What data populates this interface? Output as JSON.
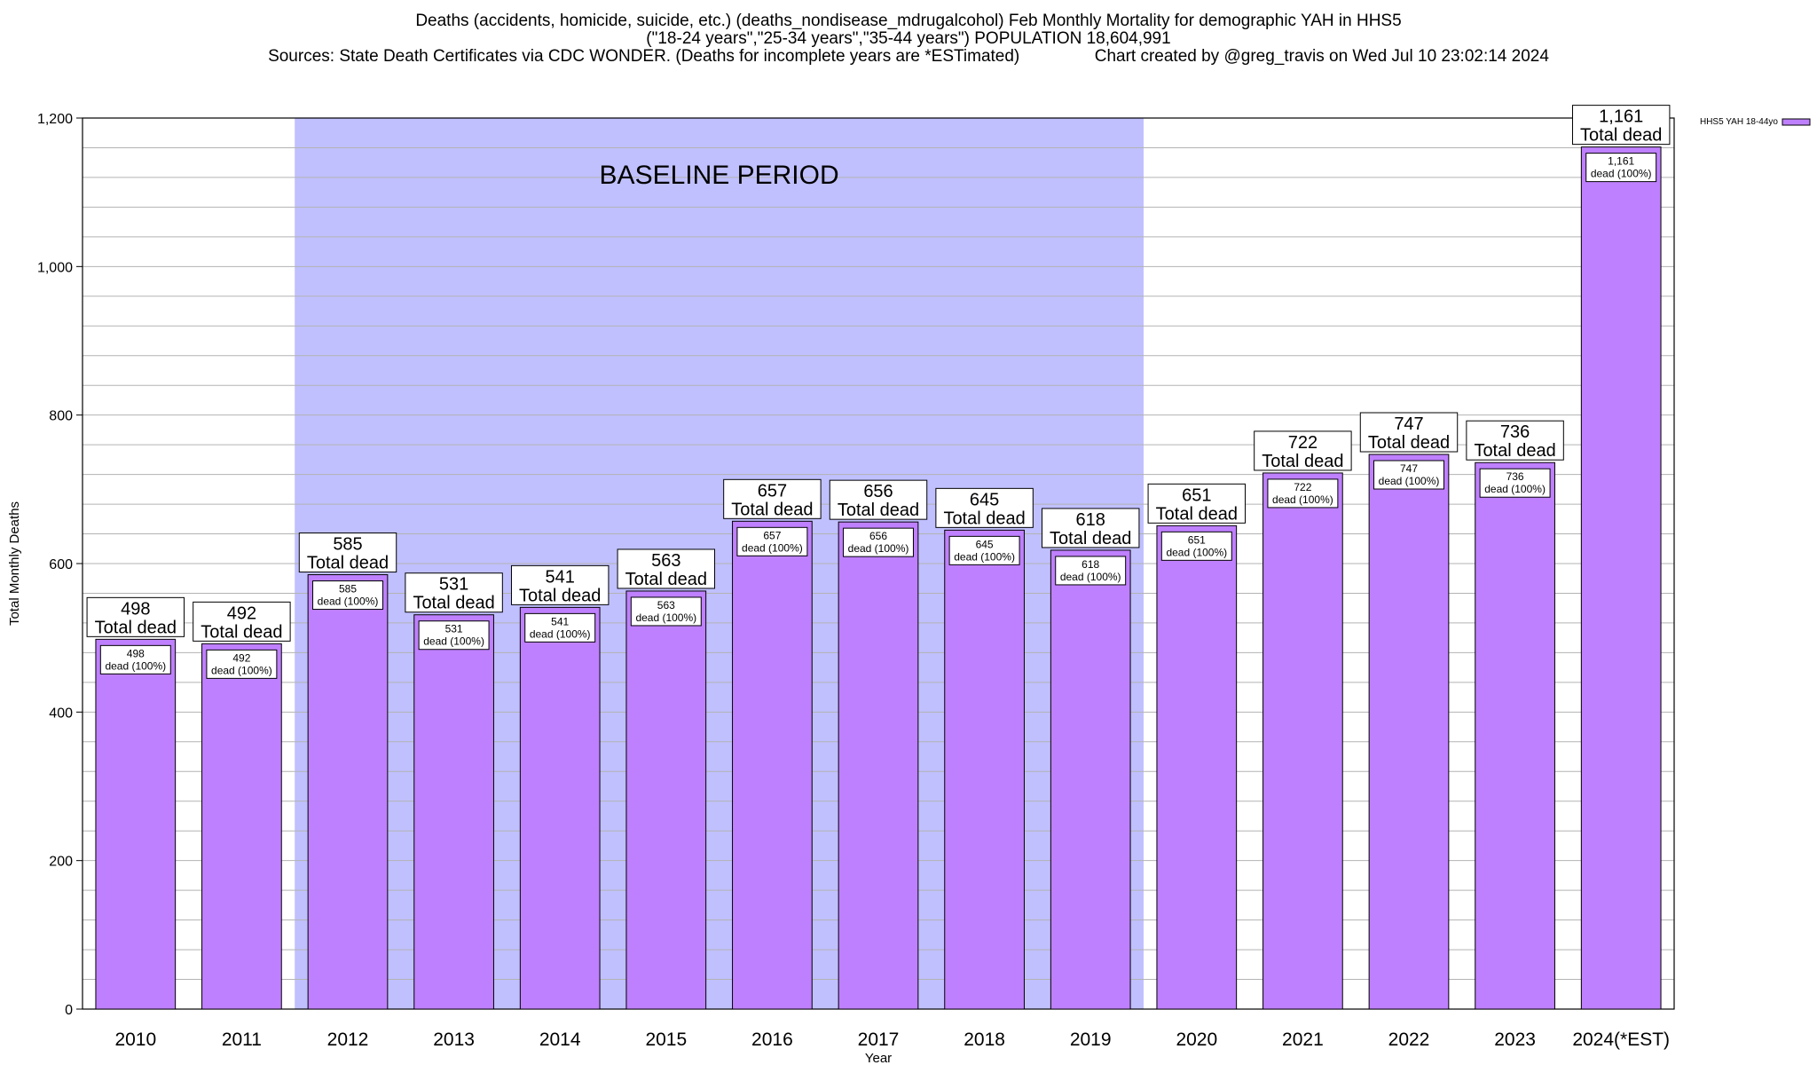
{
  "title_lines": [
    "Deaths (accidents, homicide, suicide, etc.) (deaths_nondisease_mdrugalcohol) Feb Monthly Mortality for demographic YAH in HHS5",
    "(\"18-24 years\",\"25-34 years\",\"35-44 years\") POPULATION 18,604,991",
    "Sources: State Death Certificates via CDC WONDER. (Deaths for incomplete years are *ESTimated)                Chart created by @greg_travis on Wed Jul 10 23:02:14 2024"
  ],
  "chart_data": {
    "type": "bar",
    "xlabel": "Year",
    "ylabel": "Total Monthly Deaths",
    "ylim": [
      0,
      1200
    ],
    "y_ticks": [
      0,
      200,
      400,
      600,
      800,
      1000,
      1200
    ],
    "y_tick_labels": [
      "0",
      "200",
      "400",
      "600",
      "800",
      "1,000",
      "1,200"
    ],
    "y_minor_step": 40,
    "grid": true,
    "categories": [
      "2010",
      "2011",
      "2012",
      "2013",
      "2014",
      "2015",
      "2016",
      "2017",
      "2018",
      "2019",
      "2020",
      "2021",
      "2022",
      "2023",
      "2024(*EST)"
    ],
    "series": [
      {
        "name": "HHS5 YAH 18-44yo",
        "color": "#bf80ff",
        "values": [
          498,
          492,
          585,
          531,
          541,
          563,
          657,
          656,
          645,
          618,
          651,
          722,
          747,
          736,
          1161
        ]
      }
    ],
    "top_labels": [
      "498",
      "492",
      "585",
      "531",
      "541",
      "563",
      "657",
      "656",
      "645",
      "618",
      "651",
      "722",
      "747",
      "736",
      "1,161"
    ],
    "top_label_suffix": "Total dead",
    "inner_labels": [
      "498",
      "492",
      "585",
      "531",
      "541",
      "563",
      "657",
      "656",
      "645",
      "618",
      "651",
      "722",
      "747",
      "736",
      "1,161"
    ],
    "inner_label_suffix": "dead (100%)",
    "legend": {
      "label": "HHS5 YAH 18-44yo",
      "position": "top-right"
    },
    "baseline": {
      "label": "BASELINE PERIOD",
      "from": "2012",
      "to": "2019",
      "color": "#c0c0ff"
    }
  }
}
